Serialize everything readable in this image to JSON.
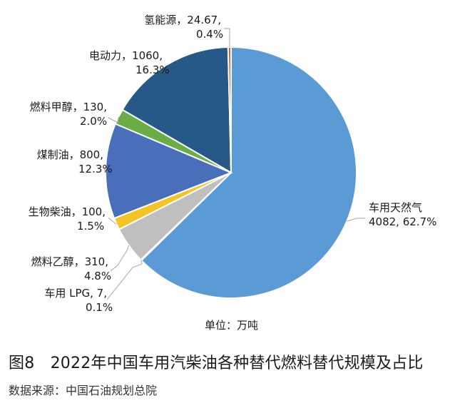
{
  "chart_data": {
    "type": "pie",
    "unit_note": "单位：万吨",
    "slices": [
      {
        "label": "车用天然气",
        "value": 4082,
        "percent": "62.7%",
        "color": "#5b9bd5"
      },
      {
        "label": "车用LPG",
        "value": 7,
        "percent": "0.1%",
        "color": "#7f7f7f"
      },
      {
        "label": "燃料乙醇",
        "value": 310,
        "percent": "4.8%",
        "color": "#bfbfbf"
      },
      {
        "label": "生物柴油",
        "value": 100,
        "percent": "1.5%",
        "color": "#f4c324"
      },
      {
        "label": "煤制油",
        "value": 800,
        "percent": "12.3%",
        "color": "#4a6fba"
      },
      {
        "label": "燃料甲醇",
        "value": 130,
        "percent": "2.0%",
        "color": "#6aad45"
      },
      {
        "label": "电动力",
        "value": 1060,
        "percent": "16.3%",
        "color": "#265987"
      },
      {
        "label": "氢能源",
        "value": 24.67,
        "percent": "0.4%",
        "color": "#d0672a"
      }
    ],
    "labels": [
      {
        "line1": "车用天然气",
        "line2": "4082, 62.7%"
      },
      {
        "line1": "车用 LPG, 7,",
        "line2": "0.1%"
      },
      {
        "line1": "燃料乙醇，310,",
        "line2": "4.8%"
      },
      {
        "line1": "生物柴油，100,",
        "line2": "1.5%"
      },
      {
        "line1": "煤制油，800,",
        "line2": "12.3%"
      },
      {
        "line1": "燃料甲醇，130,",
        "line2": "2.0%"
      },
      {
        "line1": "电动力，1060,",
        "line2": "16.3%"
      },
      {
        "line1": "氢能源，24.67,",
        "line2": "0.4%"
      }
    ]
  },
  "caption": "图8　2022年中国车用汽柴油各种替代燃料替代规模及占比",
  "source": "数据来源：中国石油规划总院"
}
